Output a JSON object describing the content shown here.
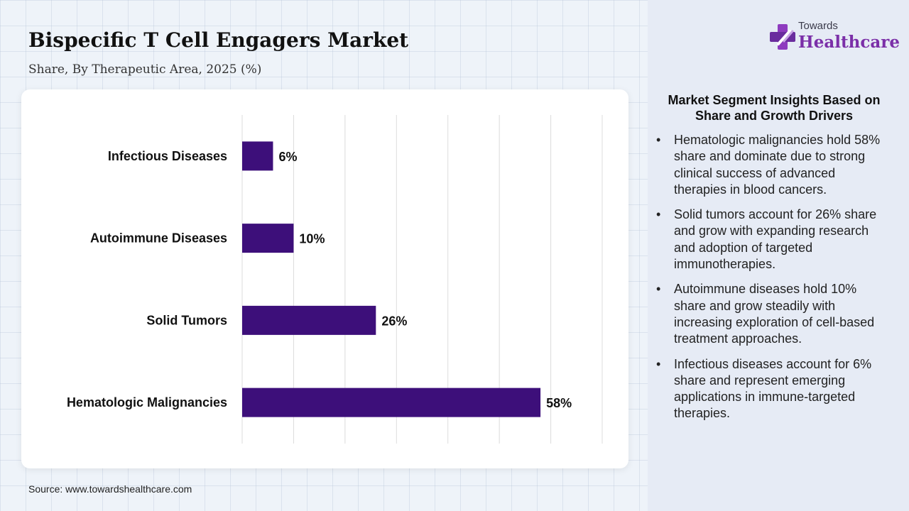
{
  "header": {
    "title": "Bispecific T Cell Engagers Market",
    "subtitle": "Share, By Therapeutic Area, 2025 (%)"
  },
  "chart_data": {
    "type": "bar",
    "orientation": "horizontal",
    "categories": [
      "Infectious Diseases",
      "Autoimmune Diseases",
      "Solid Tumors",
      "Hematologic Malignancies"
    ],
    "values": [
      6,
      10,
      26,
      58
    ],
    "value_labels": [
      "6%",
      "10%",
      "26%",
      "58%"
    ],
    "xlim": [
      0,
      70
    ],
    "grid": true,
    "bar_color": "#3d0f7a"
  },
  "source": "Source: www.towardshealthcare.com",
  "logo": {
    "top_text": "Towards",
    "main_text": "Healthcare",
    "icon": "medical-cross-icon"
  },
  "insights": {
    "heading": "Market Segment Insights Based on Share and Growth Drivers",
    "items": [
      "Hematologic malignancies hold 58% share and dominate due to strong clinical success of advanced therapies in blood cancers.",
      "Solid tumors account for 26% share and grow with expanding research and adoption of targeted immunotherapies.",
      "Autoimmune diseases hold 10% share and grow steadily with increasing exploration of cell-based treatment approaches.",
      "Infectious diseases account for 6% share and represent emerging applications in immune-targeted therapies."
    ]
  }
}
